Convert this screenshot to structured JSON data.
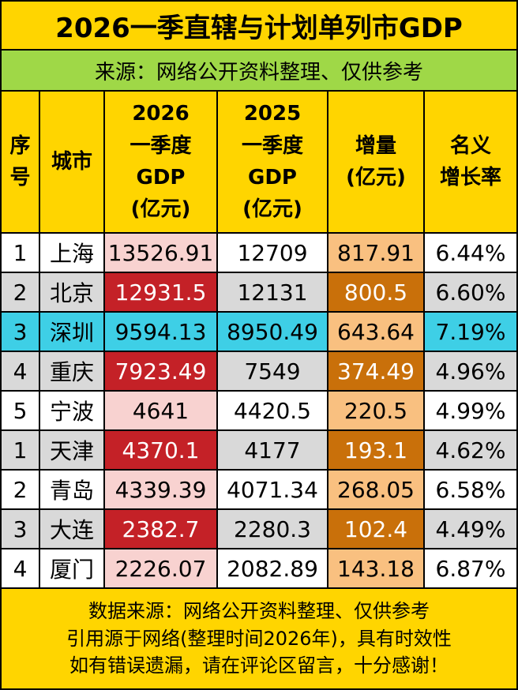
{
  "title": "2026一季直辖与计划单列市GDP",
  "source": "来源：网络公开资料整理、仅供参考",
  "headers": {
    "rank": [
      "序",
      "号"
    ],
    "city": [
      "城市"
    ],
    "gdp2026": [
      "2026",
      "一季度",
      "GDP",
      "(亿元)"
    ],
    "gdp2025": [
      "2025",
      "一季度",
      "GDP",
      "(亿元)"
    ],
    "increase": [
      "增量",
      "(亿元)"
    ],
    "growth": [
      "名义",
      "增长率"
    ]
  },
  "rows": [
    {
      "rank": "1",
      "city": "上海",
      "gdp2026": "13526.91",
      "gdp2025": "12709",
      "increase": "817.91",
      "growth": "6.44%"
    },
    {
      "rank": "2",
      "city": "北京",
      "gdp2026": "12931.5",
      "gdp2025": "12131",
      "increase": "800.5",
      "growth": "6.60%"
    },
    {
      "rank": "3",
      "city": "深圳",
      "gdp2026": "9594.13",
      "gdp2025": "8950.49",
      "increase": "643.64",
      "growth": "7.19%"
    },
    {
      "rank": "4",
      "city": "重庆",
      "gdp2026": "7923.49",
      "gdp2025": "7549",
      "increase": "374.49",
      "growth": "4.96%"
    },
    {
      "rank": "5",
      "city": "宁波",
      "gdp2026": "4641",
      "gdp2025": "4420.5",
      "increase": "220.5",
      "growth": "4.99%"
    },
    {
      "rank": "1",
      "city": "天津",
      "gdp2026": "4370.1",
      "gdp2025": "4177",
      "increase": "193.1",
      "growth": "4.62%"
    },
    {
      "rank": "2",
      "city": "青岛",
      "gdp2026": "4339.39",
      "gdp2025": "4071.34",
      "increase": "268.05",
      "growth": "6.58%"
    },
    {
      "rank": "3",
      "city": "大连",
      "gdp2026": "2382.7",
      "gdp2025": "2280.3",
      "increase": "102.4",
      "growth": "4.49%"
    },
    {
      "rank": "4",
      "city": "厦门",
      "gdp2026": "2226.07",
      "gdp2025": "2082.89",
      "increase": "143.18",
      "growth": "6.87%"
    }
  ],
  "footer": [
    "数据来源：网络公开资料整理、仅供参考",
    "引用源于网络(整理时间2026年)，具有时效性",
    "如有错误遗漏，请在评论区留言，十分感谢！"
  ],
  "colors": {
    "title_bg": "#ffd500",
    "source_bg": "#9fd847",
    "row_white": "#ffffff",
    "row_gray": "#d9d9d9",
    "row_highlight": "#3ecfe6",
    "gdp2026_light": "#f8d2d0",
    "gdp2026_dark": "#c42127",
    "increase_light": "#f9c080",
    "increase_dark": "#c9700a"
  }
}
